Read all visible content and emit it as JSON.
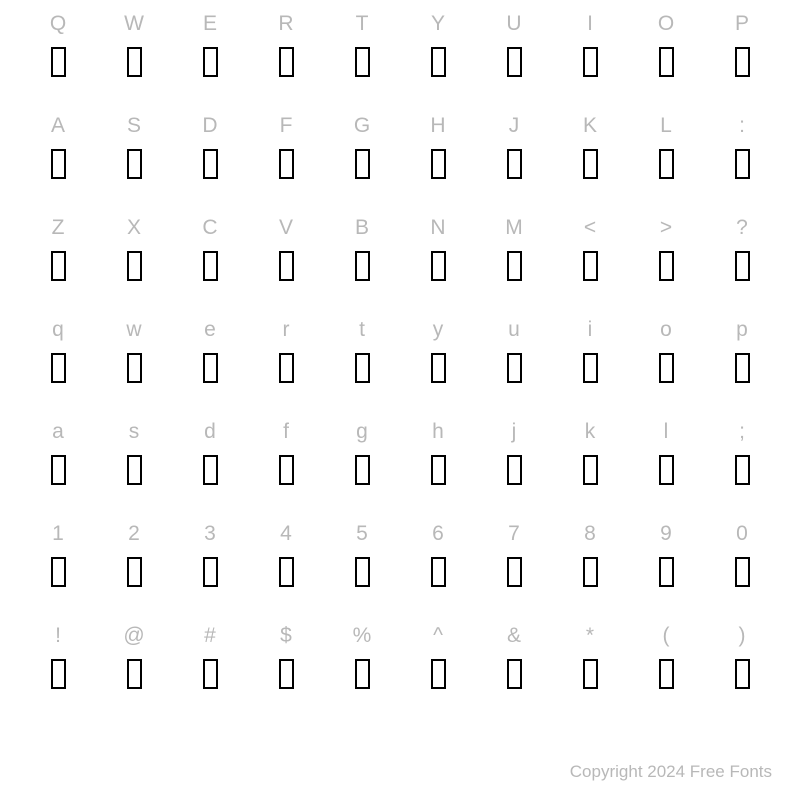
{
  "rows": [
    {
      "labels": [
        "Q",
        "W",
        "E",
        "R",
        "T",
        "Y",
        "U",
        "I",
        "O",
        "P"
      ]
    },
    {
      "labels": [
        "A",
        "S",
        "D",
        "F",
        "G",
        "H",
        "J",
        "K",
        "L",
        ":"
      ]
    },
    {
      "labels": [
        "Z",
        "X",
        "C",
        "V",
        "B",
        "N",
        "M",
        "<",
        ">",
        "?"
      ]
    },
    {
      "labels": [
        "q",
        "w",
        "e",
        "r",
        "t",
        "y",
        "u",
        "i",
        "o",
        "p"
      ]
    },
    {
      "labels": [
        "a",
        "s",
        "d",
        "f",
        "g",
        "h",
        "j",
        "k",
        "l",
        ";"
      ]
    },
    {
      "labels": [
        "1",
        "2",
        "3",
        "4",
        "5",
        "6",
        "7",
        "8",
        "9",
        "0"
      ]
    },
    {
      "labels": [
        "!",
        "@",
        "#",
        "$",
        "%",
        "^",
        "&",
        "*",
        "(",
        ")"
      ]
    }
  ],
  "copyright": "Copyright 2024 Free Fonts",
  "styling": {
    "label_color": "#b8b8b8",
    "label_fontsize": 21,
    "glyph_border_color": "#000000",
    "glyph_width": 15,
    "glyph_height": 30,
    "glyph_border_width": 2,
    "background_color": "#ffffff",
    "columns": 10,
    "row_count": 7
  }
}
